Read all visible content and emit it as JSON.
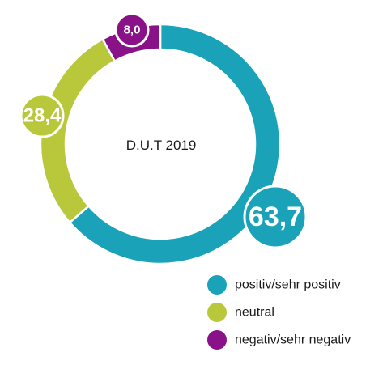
{
  "chart_data": {
    "type": "pie",
    "title": "D.U.T 2019",
    "series": [
      {
        "name": "positiv/sehr positiv",
        "value": 63.7,
        "label": "63,7",
        "color": "#1aa3b8"
      },
      {
        "name": "neutral",
        "value": 28.4,
        "label": "28,4",
        "color": "#b8c83a"
      },
      {
        "name": "negativ/sehr negativ",
        "value": 8.0,
        "label": "8,0",
        "color": "#8a1288"
      }
    ],
    "legend_position": "bottom-right"
  }
}
